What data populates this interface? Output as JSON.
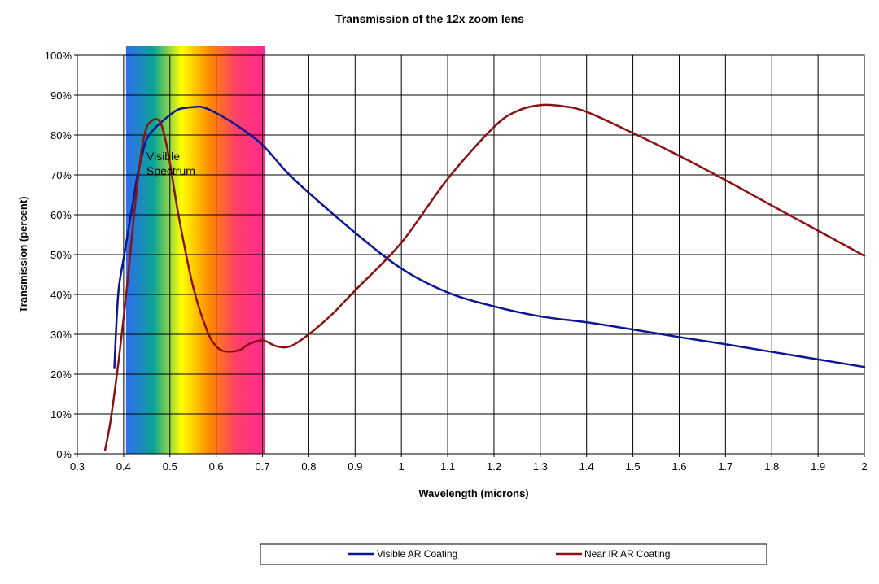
{
  "chart_data": {
    "type": "line",
    "title": "Transmission of the 12x zoom lens",
    "xlabel": "Wavelength (microns)",
    "ylabel": "Transmission (percent)",
    "xlim": [
      0.3,
      2.0
    ],
    "ylim": [
      0,
      100
    ],
    "x_ticks": [
      "0.3",
      "0.4",
      "0.5",
      "0.6",
      "0.7",
      "0.8",
      "0.9",
      "1",
      "1.1",
      "1.2",
      "1.3",
      "1.4",
      "1.5",
      "1.6",
      "1.7",
      "1.8",
      "1.9",
      "2"
    ],
    "y_ticks": [
      "0%",
      "10%",
      "20%",
      "30%",
      "40%",
      "50%",
      "60%",
      "70%",
      "80%",
      "90%",
      "100%"
    ],
    "grid": true,
    "legend_position": "bottom",
    "annotation": {
      "lines": [
        "Visible",
        "Spectrum"
      ],
      "x_range": [
        0.4,
        0.7
      ],
      "gradient_colors": [
        "#2f6cf0",
        "#0aa596",
        "#ffff00",
        "#ff8a00",
        "#ff3e6c",
        "#ff2a90"
      ]
    },
    "series": [
      {
        "name": "Visible AR Coating",
        "color": "#0c1892",
        "x": [
          0.38,
          0.385,
          0.39,
          0.4,
          0.41,
          0.42,
          0.43,
          0.44,
          0.45,
          0.47,
          0.5,
          0.52,
          0.55,
          0.57,
          0.6,
          0.65,
          0.7,
          0.75,
          0.8,
          0.9,
          1.0,
          1.1,
          1.2,
          1.3,
          1.4,
          1.5,
          1.6,
          1.7,
          1.8,
          1.9,
          2.0
        ],
        "values": [
          21.5,
          34,
          42,
          49,
          56,
          63,
          70,
          75,
          79,
          82,
          85,
          86.5,
          87,
          87,
          85.5,
          82,
          77.5,
          71,
          65.5,
          55.5,
          46.5,
          40.5,
          37,
          34.5,
          33,
          31.2,
          29.3,
          27.5,
          25.6,
          23.7,
          21.8
        ]
      },
      {
        "name": "Near IR AR Coating",
        "color": "#8b1214",
        "x": [
          0.36,
          0.37,
          0.38,
          0.39,
          0.4,
          0.41,
          0.42,
          0.43,
          0.44,
          0.45,
          0.46,
          0.47,
          0.48,
          0.49,
          0.5,
          0.52,
          0.55,
          0.58,
          0.6,
          0.62,
          0.65,
          0.67,
          0.7,
          0.73,
          0.76,
          0.8,
          0.85,
          0.9,
          1.0,
          1.1,
          1.2,
          1.25,
          1.3,
          1.35,
          1.4,
          1.5,
          1.6,
          1.7,
          1.8,
          1.9,
          2.0
        ],
        "values": [
          1,
          7,
          15,
          24,
          34,
          45,
          57,
          68,
          77,
          82,
          83.5,
          84,
          83,
          79,
          73,
          59,
          42,
          31,
          27,
          25.7,
          26,
          27.5,
          28.5,
          27,
          27,
          30,
          35,
          41,
          53,
          69,
          82,
          86,
          87.5,
          87.2,
          85.8,
          80.5,
          74.8,
          68.7,
          62.3,
          56,
          49.7
        ]
      }
    ]
  }
}
